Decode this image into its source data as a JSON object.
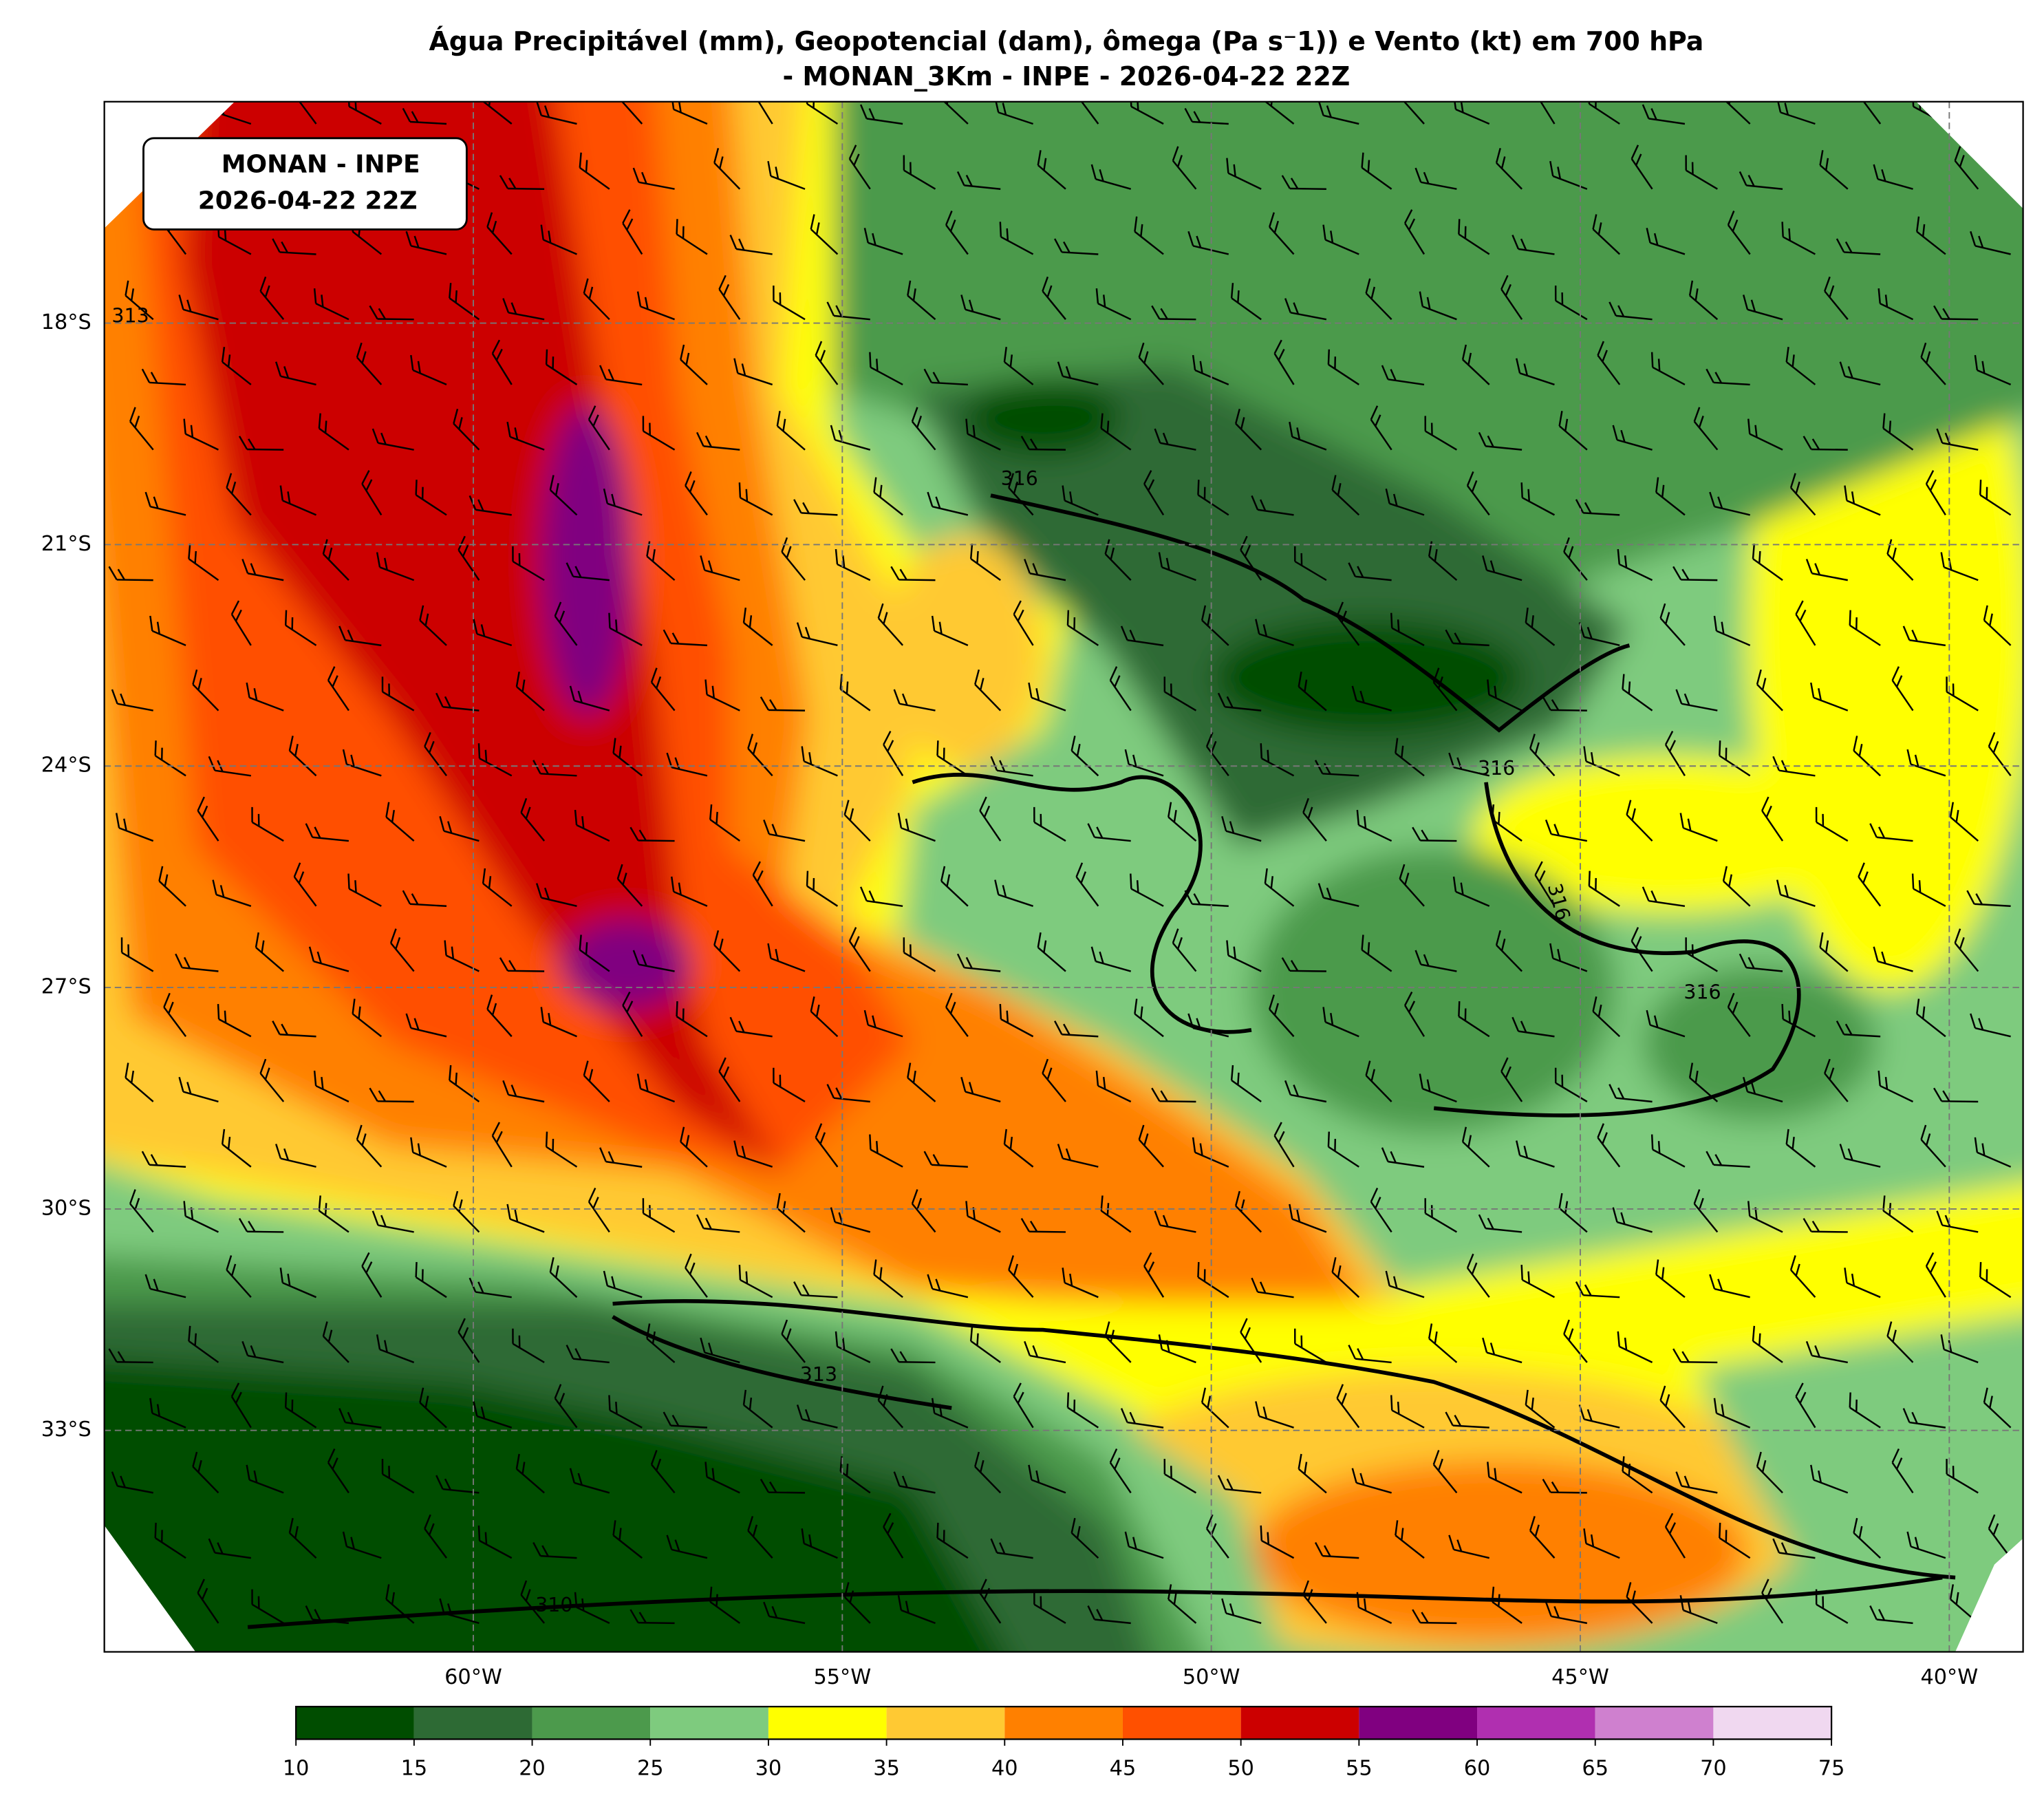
{
  "title": [
    "Água Precipitável (mm), Geopotencial (dam), ômega (Pa s⁻1)) e Vento (kt) em 700 hPa",
    "- MONAN_3Km - INPE - 2026-04-22 22Z"
  ],
  "annotation": [
    "MONAN - INPE",
    "2026-04-22 22Z"
  ],
  "map": {
    "xlim": [
      -65,
      -39
    ],
    "ylim": [
      -36,
      -15
    ],
    "lat_ticks": [
      {
        "value": -18,
        "label": "18°S"
      },
      {
        "value": -21,
        "label": "21°S"
      },
      {
        "value": -24,
        "label": "24°S"
      },
      {
        "value": -27,
        "label": "27°S"
      },
      {
        "value": -30,
        "label": "30°S"
      },
      {
        "value": -33,
        "label": "33°S"
      }
    ],
    "lon_ticks": [
      {
        "value": -60,
        "label": "60°W"
      },
      {
        "value": -55,
        "label": "55°W"
      },
      {
        "value": -50,
        "label": "50°W"
      },
      {
        "value": -45,
        "label": "45°W"
      },
      {
        "value": -40,
        "label": "40°W"
      }
    ],
    "contour_labels": [
      "316",
      "316",
      "316",
      "316",
      "313",
      "313",
      "310"
    ]
  },
  "colorbar": {
    "ticks": [
      10,
      15,
      20,
      25,
      30,
      35,
      40,
      45,
      50,
      55,
      60,
      65,
      70,
      75
    ],
    "colors": [
      "#004d00",
      "#2d6a34",
      "#4c9a4c",
      "#7ecb7e",
      "#ffff00",
      "#ffc933",
      "#ff8000",
      "#ff5000",
      "#cc0000",
      "#800080",
      "#b02fb0",
      "#cf80cf",
      "#f0d8f0"
    ]
  }
}
